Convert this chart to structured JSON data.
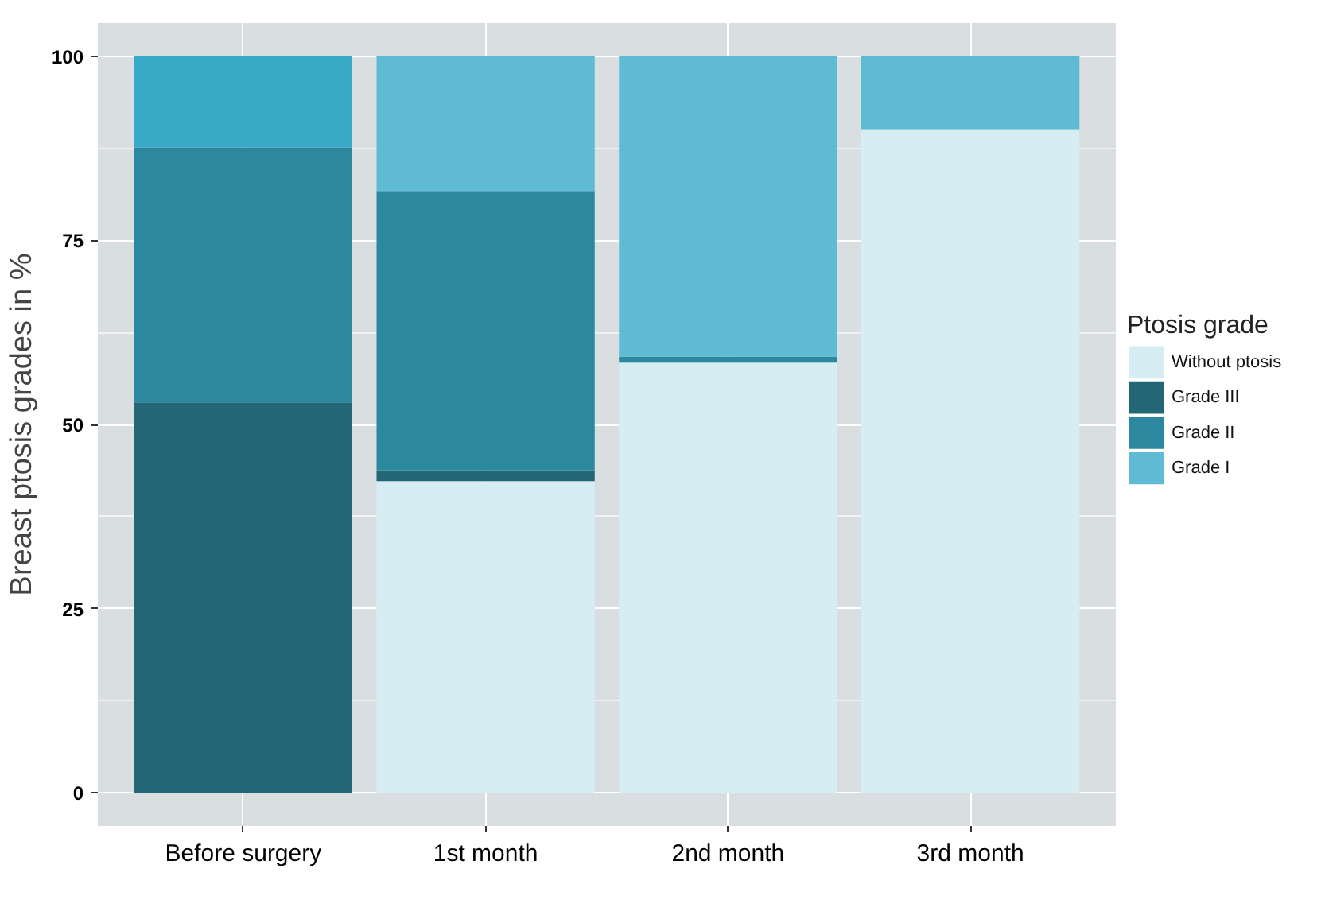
{
  "chart_data": {
    "type": "bar",
    "stacked": true,
    "ylabel": "Breast ptosis grades in %",
    "legend_title": "Ptosis grade",
    "legend": "right",
    "grid": true,
    "categories": [
      "Before surgery",
      "1st month",
      "2nd month",
      "3rd month"
    ],
    "ylim": [
      -4.5,
      104.5
    ],
    "yticks": [
      0,
      25,
      50,
      75,
      100
    ],
    "series": [
      {
        "name": "Without ptosis",
        "color": "#d6edf3",
        "values": [
          0,
          42.3,
          58.4,
          90.1
        ]
      },
      {
        "name": "Grade III",
        "color": "#236675",
        "values": [
          53,
          1.5,
          0,
          0
        ]
      },
      {
        "name": "Grade II",
        "color": "#2c889f",
        "values": [
          34.6,
          37.9,
          0.8,
          0
        ]
      },
      {
        "name": "Grade I",
        "color": "#5fbad3",
        "colors": [
          "#38aac8",
          "#5fbad3",
          "#5fbad3",
          "#5fbad3"
        ],
        "values": [
          12.4,
          18.3,
          40.8,
          9.9
        ]
      }
    ]
  }
}
